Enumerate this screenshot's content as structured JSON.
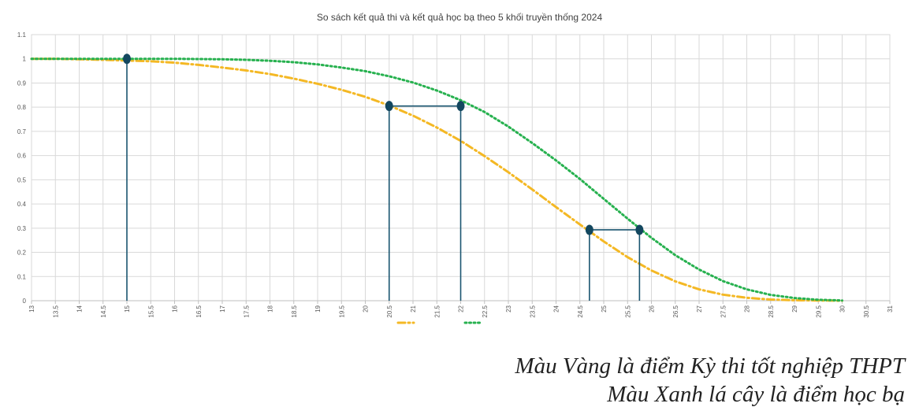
{
  "chart_data": {
    "type": "line",
    "title": "So sách kết quả thi và kết quả học bạ theo 5 khối truyền thống 2024",
    "xlabel": "",
    "ylabel": "",
    "xlim": [
      13,
      31
    ],
    "ylim": [
      0,
      1.1
    ],
    "x_ticks": [
      "13",
      "13.5",
      "14",
      "14.5",
      "15",
      "15.5",
      "16",
      "16.5",
      "17",
      "17.5",
      "18",
      "18.5",
      "19",
      "19.5",
      "20",
      "20.5",
      "21",
      "21.5",
      "22",
      "22.5",
      "23",
      "23.5",
      "24",
      "24.5",
      "25",
      "25.5",
      "26",
      "26.5",
      "27",
      "27.5",
      "28",
      "28.5",
      "29",
      "29.5",
      "30",
      "30.5",
      "31"
    ],
    "y_ticks": [
      "0",
      "0.1",
      "0.2",
      "0.3",
      "0.4",
      "0.5",
      "0.6",
      "0.7",
      "0.8",
      "0.9",
      "1",
      "1.1"
    ],
    "grid": true,
    "legend_position": "bottom",
    "series": [
      {
        "name": "",
        "color": "#f4b824",
        "style": "dash-dot",
        "x": [
          13,
          13.5,
          14,
          14.5,
          15,
          15.5,
          16,
          16.5,
          17,
          17.5,
          18,
          18.5,
          19,
          19.5,
          20,
          20.5,
          21,
          21.5,
          22,
          22.5,
          23,
          23.5,
          24,
          24.5,
          25,
          25.5,
          26,
          26.5,
          27,
          27.5,
          28,
          28.5,
          29,
          29.5,
          30
        ],
        "values": [
          1.0,
          1.0,
          0.998,
          0.996,
          0.993,
          0.99,
          0.984,
          0.975,
          0.964,
          0.952,
          0.937,
          0.918,
          0.897,
          0.872,
          0.843,
          0.807,
          0.765,
          0.716,
          0.661,
          0.598,
          0.531,
          0.46,
          0.387,
          0.315,
          0.245,
          0.18,
          0.125,
          0.08,
          0.047,
          0.025,
          0.012,
          0.005,
          0.002,
          0.001,
          0.0
        ]
      },
      {
        "name": "",
        "color": "#27b14f",
        "style": "dotted",
        "x": [
          13,
          13.5,
          14,
          14.5,
          15,
          15.5,
          16,
          16.5,
          17,
          17.5,
          18,
          18.5,
          19,
          19.5,
          20,
          20.5,
          21,
          21.5,
          22,
          22.5,
          23,
          23.5,
          24,
          24.5,
          25,
          25.5,
          26,
          26.5,
          27,
          27.5,
          28,
          28.5,
          29,
          29.5,
          30
        ],
        "values": [
          1.0,
          1.0,
          1.0,
          1.0,
          1.0,
          1.0,
          1.0,
          0.999,
          0.998,
          0.996,
          0.992,
          0.986,
          0.977,
          0.964,
          0.949,
          0.928,
          0.902,
          0.869,
          0.829,
          0.78,
          0.72,
          0.652,
          0.58,
          0.503,
          0.421,
          0.339,
          0.26,
          0.188,
          0.129,
          0.081,
          0.047,
          0.024,
          0.011,
          0.004,
          0.001
        ]
      }
    ],
    "markers": [
      {
        "x": 15.0,
        "y": 1.0
      },
      {
        "x": 20.5,
        "y": 0.805
      },
      {
        "x": 22.0,
        "y": 0.805
      },
      {
        "x": 24.7,
        "y": 0.293
      },
      {
        "x": 25.75,
        "y": 0.293
      }
    ],
    "drop_lines_x": [
      15.0,
      20.5,
      22.0,
      24.7,
      25.75
    ],
    "connectors": [
      {
        "x1": 20.5,
        "x2": 22.0,
        "y": 0.805
      },
      {
        "x1": 24.7,
        "x2": 25.75,
        "y": 0.293
      }
    ],
    "marker_color": "#13475f",
    "line_color": "#1a5570"
  },
  "caption": {
    "line1": "Màu Vàng là điểm Kỳ thi tốt nghiệp THPT",
    "line2": "Màu Xanh lá cây là điểm học bạ"
  }
}
